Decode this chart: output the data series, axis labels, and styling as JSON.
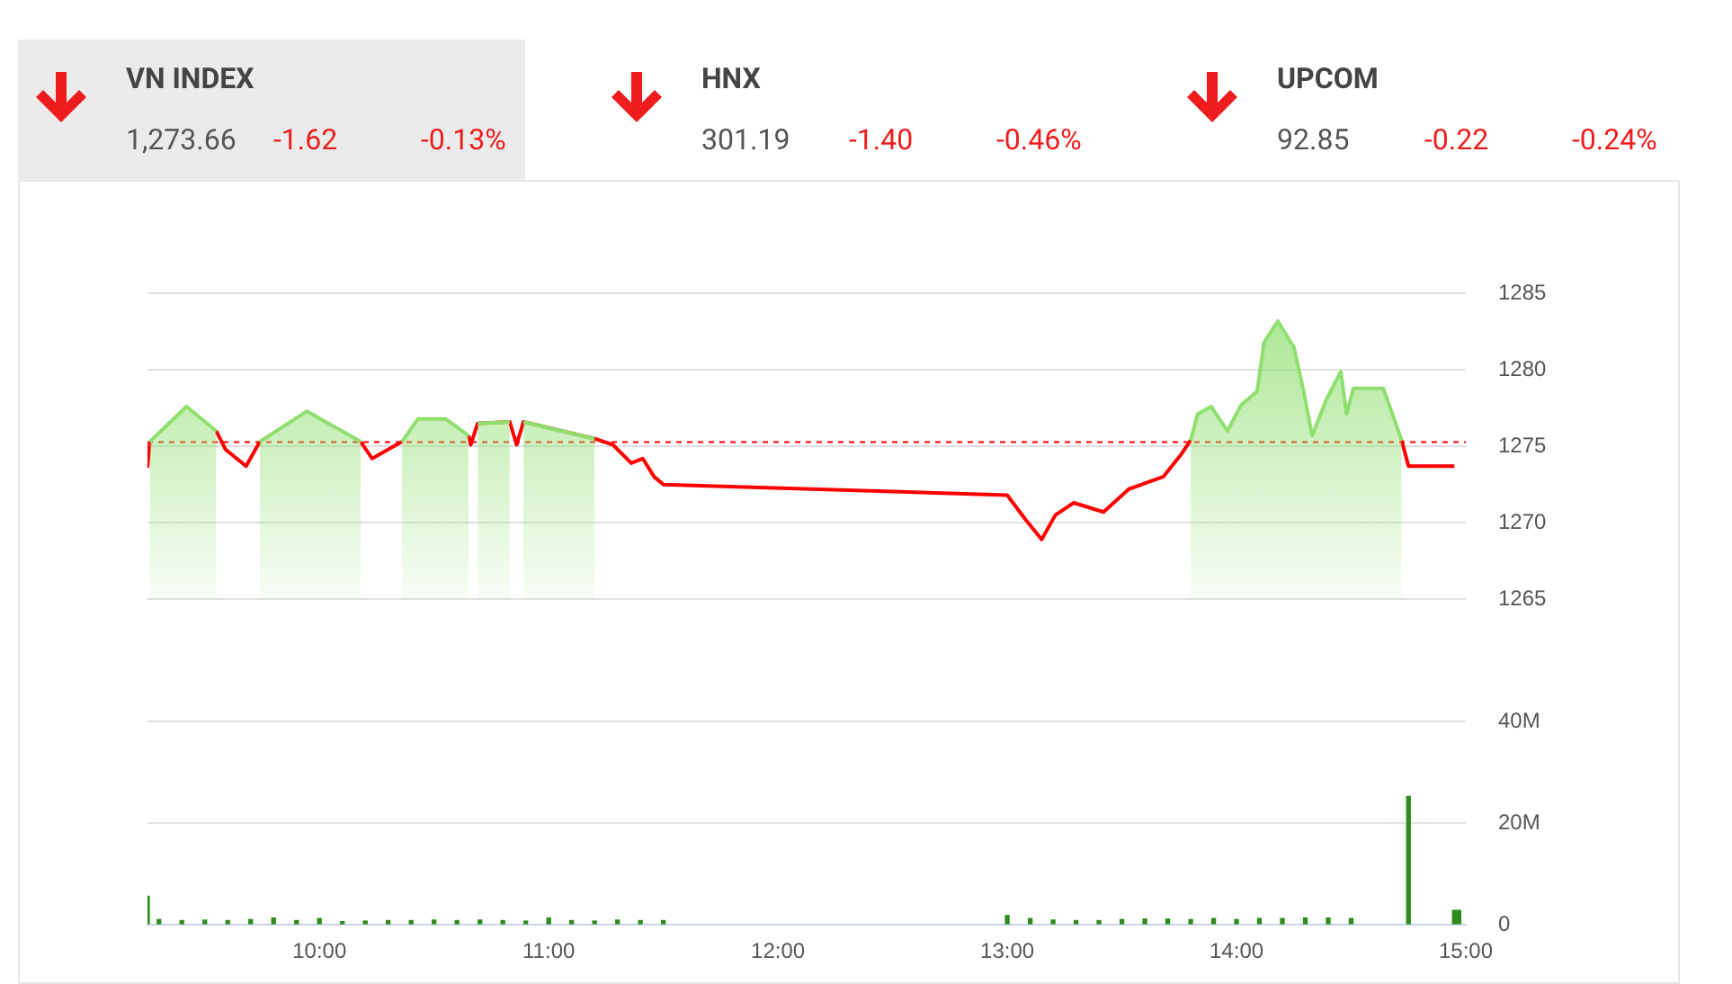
{
  "chart_data": [
    {
      "type": "other",
      "annotations": [
        "VN INDEX",
        "1,273.66",
        "-1.62",
        "-0.13%",
        "HNX",
        "301.19",
        "-1.40",
        "-0.46%",
        "UPCOM",
        "92.85",
        "-0.22",
        "-0.24%"
      ]
    },
    {
      "type": "area",
      "tick_labels": "y",
      "grid": "y",
      "xlim": [
        9.25,
        15
      ],
      "ylim": [
        1265,
        1285
      ],
      "yticks": [
        1265,
        1270,
        1275,
        1280,
        1285
      ],
      "ref_lines": [
        {
          "axis": "y",
          "value": 1275.28,
          "color": "#ff0000",
          "line_style": "dashed"
        }
      ],
      "series": [
        {
          "color": "#8fdf6f",
          "values": [
            null,
            1275.3,
            1277.6,
            1276.0,
            null,
            null,
            1275.3,
            1277.3,
            1275.3,
            null,
            1275.3,
            1276.8,
            1276.8,
            1275.7,
            null,
            1276.5,
            1276.6,
            null,
            1276.6,
            1275.5,
            null,
            null,
            null,
            null,
            null,
            null,
            null,
            null,
            null,
            null,
            null,
            null,
            null,
            null,
            1275.4,
            1277.1,
            1277.6,
            1276.0,
            1277.7,
            1278.6,
            1281.8,
            1283.2,
            1281.5,
            1278.8,
            1275.7,
            1278.0,
            1279.9,
            1277.1,
            1278.8,
            1278.8,
            1275.4,
            null,
            null
          ]
        },
        {
          "type": "line",
          "color": "#ff0000",
          "values": [
            1273.6,
            1275.3,
            null,
            1276.0,
            1274.8,
            1273.7,
            1275.3,
            null,
            1275.3,
            1274.2,
            1275.3,
            null,
            null,
            1275.7,
            1275.1,
            1276.5,
            1276.6,
            1275.1,
            1276.6,
            1275.5,
            1275.1,
            1273.9,
            1274.2,
            1273.0,
            1272.5,
            1271.8,
            1270.2,
            1268.9,
            1270.5,
            1271.3,
            1270.7,
            1272.2,
            1273.0,
            1274.5,
            1275.4,
            null,
            null,
            null,
            null,
            null,
            null,
            null,
            null,
            null,
            null,
            null,
            null,
            null,
            null,
            null,
            1275.4,
            1273.7,
            1273.7
          ]
        }
      ],
      "x": [
        9.25,
        9.26,
        9.42,
        9.55,
        9.59,
        9.68,
        9.74,
        9.945,
        10.18,
        10.23,
        10.36,
        10.43,
        10.55,
        10.65,
        10.66,
        10.69,
        10.83,
        10.86,
        10.89,
        11.2,
        11.28,
        11.36,
        11.41,
        11.46,
        11.5,
        13.0,
        13.08,
        13.15,
        13.21,
        13.29,
        13.42,
        13.53,
        13.68,
        13.76,
        13.8,
        13.83,
        13.89,
        13.96,
        14.02,
        14.09,
        14.12,
        14.18,
        14.25,
        14.29,
        14.33,
        14.39,
        14.455,
        14.48,
        14.51,
        14.64,
        14.72,
        14.75,
        14.95
      ]
    },
    {
      "type": "bar",
      "grid": "y",
      "xlim": [
        9.25,
        15
      ],
      "xticks": [
        {
          "value": 10,
          "label": "10:00"
        },
        {
          "value": 11,
          "label": "11:00"
        },
        {
          "value": 12,
          "label": "12:00"
        },
        {
          "value": 13,
          "label": "13:00"
        },
        {
          "value": 14,
          "label": "14:00"
        },
        {
          "value": 15,
          "label": "15:00"
        }
      ],
      "ylim": [
        0,
        40
      ],
      "yticks": [
        0,
        {
          "value": 20,
          "label": "20M"
        },
        {
          "value": 40,
          "label": "40M"
        }
      ],
      "series": [
        {
          "color": "#2e8b1e",
          "x": [
            9.25,
            9.3,
            9.4,
            9.5,
            9.6,
            9.7,
            9.8,
            9.9,
            10.0,
            10.1,
            10.2,
            10.3,
            10.4,
            10.5,
            10.6,
            10.7,
            10.8,
            10.9,
            11.0,
            11.1,
            11.2,
            11.3,
            11.4,
            11.5,
            13.0,
            13.1,
            13.2,
            13.3,
            13.4,
            13.5,
            13.6,
            13.7,
            13.8,
            13.9,
            14.0,
            14.1,
            14.2,
            14.3,
            14.4,
            14.5,
            14.75,
            14.95,
            14.97
          ],
          "values": [
            5.6,
            1.0,
            0.8,
            0.9,
            0.8,
            1.0,
            1.3,
            0.8,
            1.2,
            0.6,
            0.7,
            0.8,
            0.8,
            0.9,
            0.8,
            0.9,
            0.8,
            0.7,
            1.3,
            0.8,
            0.7,
            0.9,
            0.8,
            0.8,
            1.8,
            1.2,
            0.9,
            0.8,
            0.8,
            1.0,
            1.1,
            1.1,
            1.0,
            1.2,
            1.0,
            1.2,
            1.2,
            1.3,
            1.3,
            1.2,
            25.3,
            2.8,
            2.8
          ]
        }
      ]
    }
  ]
}
